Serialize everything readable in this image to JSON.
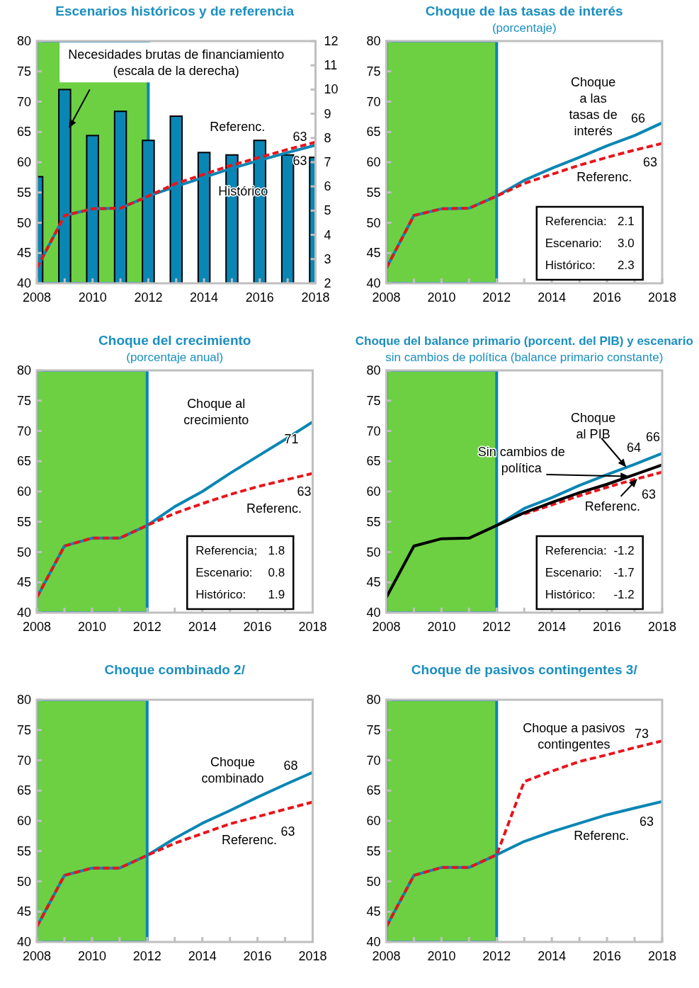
{
  "chart_data": [
    {
      "type": "line",
      "title": "Escenarios históricos y de referencia",
      "x": [
        2008,
        2009,
        2010,
        2011,
        2012,
        2013,
        2014,
        2015,
        2016,
        2017,
        2018
      ],
      "xlim": [
        2008,
        2018
      ],
      "xticks": [
        2008,
        {
          "value": 2009,
          "label": null
        },
        2010,
        {
          "value": 2011,
          "label": null
        },
        2012,
        {
          "value": 2013,
          "label": null
        },
        2014,
        {
          "value": 2015,
          "label": null
        },
        2016,
        {
          "value": 2017,
          "label": null
        },
        2018
      ],
      "ylim": [
        40,
        80
      ],
      "yticks": [
        40,
        45,
        50,
        55,
        60,
        65,
        70,
        75,
        80
      ],
      "y2lim": [
        2,
        12
      ],
      "y2ticks": [
        2,
        3,
        4,
        5,
        6,
        7,
        8,
        9,
        10,
        11,
        12
      ],
      "bands": [
        {
          "axis": "x",
          "from": 2008,
          "to": 2012,
          "color": "#6dd043"
        }
      ],
      "series": [
        {
          "type": "bar",
          "axis": "y2",
          "color": "#0a86b4",
          "values": [
            6.4,
            10.0,
            8.1,
            9.1,
            7.9,
            8.9,
            7.4,
            7.3,
            7.9,
            7.3,
            7.2
          ]
        },
        {
          "color": "#0a86b4",
          "line_style": "solid",
          "values": [
            42.5,
            51.2,
            52.3,
            52.4,
            54.4,
            56.0,
            57.5,
            59.0,
            60.3,
            61.6,
            62.8
          ],
          "value_labels": [
            null,
            null,
            null,
            null,
            null,
            null,
            null,
            null,
            null,
            null,
            "63"
          ]
        },
        {
          "color": "#e8141c",
          "line_style": "dashed",
          "values": [
            42.5,
            51.2,
            52.3,
            52.4,
            54.4,
            56.5,
            58.0,
            59.5,
            60.8,
            62.1,
            63.3
          ],
          "value_labels": [
            null,
            null,
            null,
            null,
            null,
            null,
            null,
            null,
            null,
            null,
            "63"
          ]
        }
      ],
      "annotations": [
        "Necesidades brutas de financiamiento\n(escala de la derecha)",
        "Referenc.",
        "Histórico"
      ]
    },
    {
      "type": "line",
      "title": "Choque de las tasas de interés",
      "subtitle": "(porcentaje)",
      "x": [
        2008,
        2009,
        2010,
        2011,
        2012,
        2013,
        2014,
        2015,
        2016,
        2017,
        2018
      ],
      "xlim": [
        2008,
        2018
      ],
      "xticks": [
        2008,
        {
          "value": 2009,
          "label": null
        },
        2010,
        {
          "value": 2011,
          "label": null
        },
        2012,
        {
          "value": 2013,
          "label": null
        },
        2014,
        {
          "value": 2015,
          "label": null
        },
        2016,
        {
          "value": 2017,
          "label": null
        },
        2018
      ],
      "ylim": [
        40,
        80
      ],
      "yticks": [
        40,
        45,
        50,
        55,
        60,
        65,
        70,
        75,
        80
      ],
      "bands": [
        {
          "axis": "x",
          "from": 2008,
          "to": 2012,
          "color": "#6dd043"
        }
      ],
      "series": [
        {
          "color": "#0a86b4",
          "line_style": "solid",
          "values": [
            42.5,
            51.2,
            52.3,
            52.4,
            54.4,
            57.0,
            59.0,
            60.8,
            62.7,
            64.4,
            66.5
          ],
          "value_labels": [
            null,
            null,
            null,
            null,
            null,
            null,
            null,
            null,
            null,
            null,
            "66"
          ]
        },
        {
          "color": "#e8141c",
          "line_style": "dashed",
          "values": [
            42.5,
            51.2,
            52.3,
            52.4,
            54.4,
            56.5,
            58.0,
            59.5,
            60.8,
            62.0,
            63.1
          ],
          "value_labels": [
            null,
            null,
            null,
            null,
            null,
            null,
            null,
            null,
            null,
            null,
            "63"
          ]
        }
      ],
      "annotations": [
        "Choque\na las\ntasas de\ninterés",
        "Referenc.",
        "Referencia: 2.1",
        "Escenario: 3.0",
        "Histórico: 2.3"
      ]
    },
    {
      "type": "line",
      "title": "Choque del crecimiento",
      "subtitle": "(porcentaje anual)",
      "x": [
        2008,
        2009,
        2010,
        2011,
        2012,
        2013,
        2014,
        2015,
        2016,
        2017,
        2018
      ],
      "xlim": [
        2008,
        2018
      ],
      "xticks": [
        2008,
        {
          "value": 2009,
          "label": null
        },
        2010,
        {
          "value": 2011,
          "label": null
        },
        2012,
        {
          "value": 2013,
          "label": null
        },
        2014,
        {
          "value": 2015,
          "label": null
        },
        2016,
        {
          "value": 2017,
          "label": null
        },
        2018
      ],
      "ylim": [
        40,
        80
      ],
      "yticks": [
        40,
        45,
        50,
        55,
        60,
        65,
        70,
        75,
        80
      ],
      "bands": [
        {
          "axis": "x",
          "from": 2008,
          "to": 2012,
          "color": "#6dd043"
        }
      ],
      "series": [
        {
          "color": "#0a86b4",
          "line_style": "solid",
          "values": [
            42.5,
            51.0,
            52.3,
            52.3,
            54.4,
            57.5,
            60.0,
            63.0,
            65.8,
            68.6,
            71.5
          ],
          "value_labels": [
            null,
            null,
            null,
            null,
            null,
            null,
            null,
            null,
            null,
            null,
            "71"
          ]
        },
        {
          "color": "#e8141c",
          "line_style": "dashed",
          "values": [
            42.5,
            51.0,
            52.3,
            52.3,
            54.4,
            56.4,
            58.0,
            59.5,
            60.8,
            61.9,
            63.0
          ],
          "value_labels": [
            null,
            null,
            null,
            null,
            null,
            null,
            null,
            null,
            null,
            null,
            "63"
          ]
        }
      ],
      "annotations": [
        "Choque al\ncrecimiento",
        "Referenc.",
        "Referencia; 1.8",
        "Escenario: 0.8",
        "Histórico: 1.9"
      ]
    },
    {
      "type": "line",
      "title": "Choque del balance primario (porcent. del PIB) y escenario",
      "subtitle": "sin cambios de política (balance primario constante)",
      "x": [
        2008,
        2009,
        2010,
        2011,
        2012,
        2013,
        2014,
        2015,
        2016,
        2017,
        2018
      ],
      "xlim": [
        2008,
        2018
      ],
      "xticks": [
        2008,
        {
          "value": 2009,
          "label": null
        },
        2010,
        {
          "value": 2011,
          "label": null
        },
        2012,
        {
          "value": 2013,
          "label": null
        },
        2014,
        {
          "value": 2015,
          "label": null
        },
        2016,
        {
          "value": 2017,
          "label": null
        },
        2018
      ],
      "ylim": [
        40,
        80
      ],
      "yticks": [
        40,
        45,
        50,
        55,
        60,
        65,
        70,
        75,
        80
      ],
      "bands": [
        {
          "axis": "x",
          "from": 2008,
          "to": 2012,
          "color": "#6dd043"
        }
      ],
      "series": [
        {
          "color": "#0a86b4",
          "line_style": "solid",
          "values": [
            null,
            null,
            null,
            null,
            54.4,
            57.2,
            59.0,
            61.0,
            62.8,
            64.5,
            66.3
          ],
          "value_labels": [
            null,
            null,
            null,
            null,
            null,
            null,
            null,
            null,
            null,
            null,
            "66"
          ]
        },
        {
          "color": "#e8141c",
          "line_style": "dashed",
          "values": [
            null,
            null,
            null,
            null,
            null,
            56.3,
            57.8,
            59.3,
            60.7,
            62.0,
            63.2
          ],
          "value_labels": [
            null,
            null,
            null,
            null,
            null,
            null,
            null,
            null,
            null,
            null,
            "63"
          ]
        },
        {
          "color": "#000000",
          "line_style": "solid",
          "values": [
            42.5,
            51.0,
            52.2,
            52.3,
            54.4,
            56.5,
            58.2,
            59.8,
            61.2,
            62.8,
            64.4
          ],
          "value_labels": [
            null,
            null,
            null,
            null,
            null,
            null,
            null,
            null,
            null,
            null,
            "64"
          ]
        }
      ],
      "annotations": [
        {
          "text": "Choque\nal PIB",
          "x": 2016.7,
          "y": 64.0
        },
        {
          "text": "Sin cambios de\npolítica",
          "x": 2016.8,
          "y": 62.5
        },
        {
          "text": "Referenc.",
          "x": 2017.1,
          "y": 62.1
        },
        "Referencia: -1.2",
        "Escenario: -1.7",
        "Histórico: -1.2"
      ]
    },
    {
      "type": "line",
      "title": "Choque combinado 2/",
      "x": [
        2008,
        2009,
        2010,
        2011,
        2012,
        2013,
        2014,
        2015,
        2016,
        2017,
        2018
      ],
      "xlim": [
        2008,
        2018
      ],
      "xticks": [
        2008,
        {
          "value": 2009,
          "label": null
        },
        2010,
        {
          "value": 2011,
          "label": null
        },
        2012,
        {
          "value": 2013,
          "label": null
        },
        2014,
        {
          "value": 2015,
          "label": null
        },
        2016,
        {
          "value": 2017,
          "label": null
        },
        2018
      ],
      "ylim": [
        40,
        80
      ],
      "yticks": [
        40,
        45,
        50,
        55,
        60,
        65,
        70,
        75,
        80
      ],
      "bands": [
        {
          "axis": "x",
          "from": 2008,
          "to": 2012,
          "color": "#6dd043"
        }
      ],
      "series": [
        {
          "color": "#0a86b4",
          "line_style": "solid",
          "values": [
            42.5,
            51.0,
            52.2,
            52.2,
            54.3,
            57.1,
            59.6,
            61.7,
            63.9,
            66.0,
            68.0
          ],
          "value_labels": [
            null,
            null,
            null,
            null,
            null,
            null,
            null,
            null,
            null,
            null,
            "68"
          ]
        },
        {
          "color": "#e8141c",
          "line_style": "dashed",
          "values": [
            42.5,
            51.0,
            52.2,
            52.2,
            54.3,
            56.3,
            57.9,
            59.5,
            60.7,
            61.9,
            63.1
          ],
          "value_labels": [
            null,
            null,
            null,
            null,
            null,
            null,
            null,
            null,
            null,
            null,
            "63"
          ]
        }
      ],
      "annotations": [
        "Choque\ncombinado",
        "Referenc."
      ]
    },
    {
      "type": "line",
      "title": "Choque de pasivos contingentes 3/",
      "x": [
        2008,
        2009,
        2010,
        2011,
        2012,
        2013,
        2014,
        2015,
        2016,
        2017,
        2018
      ],
      "xlim": [
        2008,
        2018
      ],
      "xticks": [
        2008,
        {
          "value": 2009,
          "label": null
        },
        2010,
        {
          "value": 2011,
          "label": null
        },
        2012,
        {
          "value": 2013,
          "label": null
        },
        2014,
        {
          "value": 2015,
          "label": null
        },
        2016,
        {
          "value": 2017,
          "label": null
        },
        2018
      ],
      "ylim": [
        40,
        80
      ],
      "yticks": [
        40,
        45,
        50,
        55,
        60,
        65,
        70,
        75,
        80
      ],
      "bands": [
        {
          "axis": "x",
          "from": 2008,
          "to": 2012,
          "color": "#6dd043"
        }
      ],
      "series": [
        {
          "color": "#0a86b4",
          "line_style": "solid",
          "values": [
            42.5,
            51.0,
            52.3,
            52.3,
            54.4,
            56.6,
            58.2,
            59.6,
            61.0,
            62.1,
            63.2
          ],
          "value_labels": [
            null,
            null,
            null,
            null,
            null,
            null,
            null,
            null,
            null,
            null,
            "63"
          ]
        },
        {
          "color": "#e8141c",
          "line_style": "dashed",
          "values": [
            42.5,
            51.0,
            52.3,
            52.3,
            54.4,
            66.5,
            68.2,
            69.8,
            70.9,
            72.1,
            73.2
          ],
          "value_labels": [
            null,
            null,
            null,
            null,
            null,
            null,
            null,
            null,
            null,
            null,
            "73"
          ]
        }
      ],
      "annotations": [
        "Choque a pasivos\ncontingentes",
        "Referenc."
      ]
    }
  ]
}
